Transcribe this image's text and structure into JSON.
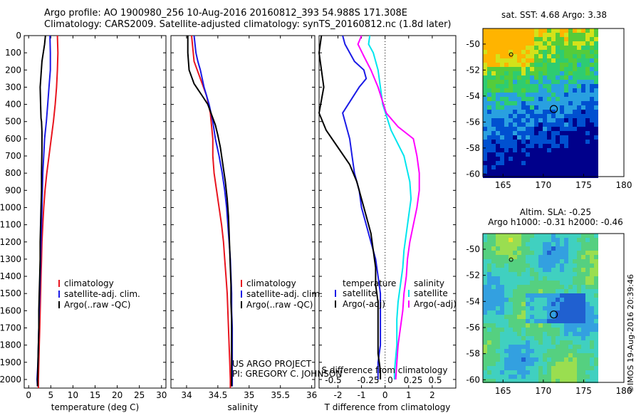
{
  "header": {
    "line1": "Argo profile: AO 1900980_256 10-Aug-2016 20160812_393 54.988S 171.308E",
    "line2": "Climatology: CARS2009. Satellite-adjusted climatology: synTS_20160812.nc (1.8d later)"
  },
  "stamp": "©IMOS 19-Aug-2016 20:39:46",
  "project": {
    "line1": "US ARGO PROJECT",
    "line2": "PI: GREGORY C. JOHNSON"
  },
  "colors": {
    "clim": "#e8141e",
    "sat": "#1a1ae6",
    "argo": "#000000",
    "sal_clim": "#ff00ff",
    "sal_sat": "#00e5ee"
  },
  "chart_data": [
    {
      "type": "line",
      "id": "temperature",
      "xlabel": "temperature (deg C)",
      "xlim": [
        -1,
        31
      ],
      "ylim": [
        2050,
        0
      ],
      "xticks": [
        0,
        5,
        10,
        15,
        20,
        25,
        30
      ],
      "yticks": [
        0,
        100,
        200,
        300,
        400,
        500,
        600,
        700,
        800,
        900,
        1000,
        1100,
        1200,
        1300,
        1400,
        1500,
        1600,
        1700,
        1800,
        1900,
        2000
      ],
      "legend": [
        "climatology",
        "satellite-adj. clim.",
        "Argo(..raw -QC)"
      ],
      "series": [
        {
          "name": "climatology",
          "color": "#e8141e",
          "points": [
            [
              6.5,
              0
            ],
            [
              6.6,
              100
            ],
            [
              6.5,
              200
            ],
            [
              6.3,
              300
            ],
            [
              6.0,
              400
            ],
            [
              5.6,
              500
            ],
            [
              5.1,
              600
            ],
            [
              4.6,
              700
            ],
            [
              4.1,
              800
            ],
            [
              3.7,
              900
            ],
            [
              3.4,
              1000
            ],
            [
              3.2,
              1100
            ],
            [
              3.0,
              1200
            ],
            [
              2.9,
              1300
            ],
            [
              2.8,
              1400
            ],
            [
              2.7,
              1500
            ],
            [
              2.6,
              1600
            ],
            [
              2.5,
              1700
            ],
            [
              2.4,
              1800
            ],
            [
              2.3,
              1900
            ],
            [
              2.2,
              2000
            ],
            [
              2.2,
              2050
            ]
          ]
        },
        {
          "name": "satellite-adj. clim.",
          "color": "#1a1ae6",
          "points": [
            [
              4.8,
              0
            ],
            [
              4.9,
              100
            ],
            [
              4.9,
              200
            ],
            [
              4.6,
              300
            ],
            [
              4.3,
              400
            ],
            [
              4.0,
              500
            ],
            [
              3.6,
              600
            ],
            [
              3.4,
              700
            ],
            [
              3.2,
              800
            ],
            [
              3.1,
              900
            ],
            [
              3.0,
              1000
            ],
            [
              2.9,
              1100
            ],
            [
              2.8,
              1200
            ],
            [
              2.7,
              1300
            ],
            [
              2.6,
              1400
            ],
            [
              2.5,
              1500
            ],
            [
              2.4,
              1600
            ],
            [
              2.3,
              1700
            ],
            [
              2.2,
              1800
            ],
            [
              2.1,
              1900
            ],
            [
              1.9,
              2000
            ],
            [
              2.0,
              2040
            ]
          ]
        },
        {
          "name": "Argo(..raw -QC)",
          "color": "#000000",
          "points": [
            [
              3.8,
              0
            ],
            [
              3.6,
              50
            ],
            [
              3.0,
              150
            ],
            [
              2.6,
              300
            ],
            [
              2.7,
              400
            ],
            [
              2.8,
              480
            ],
            [
              2.9,
              500
            ],
            [
              3.0,
              560
            ],
            [
              3.0,
              650
            ],
            [
              2.9,
              800
            ],
            [
              2.9,
              900
            ],
            [
              2.8,
              1000
            ],
            [
              2.7,
              1100
            ],
            [
              2.6,
              1200
            ],
            [
              2.6,
              1300
            ],
            [
              2.5,
              1400
            ],
            [
              2.4,
              1500
            ],
            [
              2.3,
              1600
            ],
            [
              2.3,
              1700
            ],
            [
              2.2,
              1800
            ],
            [
              2.1,
              1900
            ],
            [
              2.0,
              2000
            ],
            [
              2.0,
              2040
            ]
          ]
        }
      ]
    },
    {
      "type": "line",
      "id": "salinity",
      "xlabel": "salinity",
      "xlim": [
        33.75,
        36.05
      ],
      "ylim": [
        2050,
        0
      ],
      "xticks": [
        34,
        34.5,
        35,
        35.5,
        36
      ],
      "xticklabels": [
        "34",
        "34.5",
        "35",
        "35.5",
        "36"
      ],
      "legend": [
        "climatology",
        "satellite-adj. clim.",
        "Argo(..raw -QC)"
      ],
      "series": [
        {
          "name": "climatology",
          "color": "#e8141e",
          "points": [
            [
              34.08,
              0
            ],
            [
              34.12,
              150
            ],
            [
              34.22,
              250
            ],
            [
              34.32,
              350
            ],
            [
              34.38,
              450
            ],
            [
              34.42,
              600
            ],
            [
              34.42,
              700
            ],
            [
              34.44,
              800
            ],
            [
              34.48,
              900
            ],
            [
              34.52,
              1000
            ],
            [
              34.56,
              1100
            ],
            [
              34.59,
              1200
            ],
            [
              34.61,
              1300
            ],
            [
              34.63,
              1400
            ],
            [
              34.65,
              1500
            ],
            [
              34.66,
              1600
            ],
            [
              34.67,
              1700
            ],
            [
              34.68,
              1800
            ],
            [
              34.69,
              1900
            ],
            [
              34.7,
              2000
            ],
            [
              34.7,
              2050
            ]
          ]
        },
        {
          "name": "satellite-adj. clim.",
          "color": "#1a1ae6",
          "points": [
            [
              34.12,
              0
            ],
            [
              34.15,
              100
            ],
            [
              34.18,
              150
            ],
            [
              34.22,
              200
            ],
            [
              34.28,
              300
            ],
            [
              34.36,
              400
            ],
            [
              34.42,
              500
            ],
            [
              34.46,
              600
            ],
            [
              34.52,
              700
            ],
            [
              34.57,
              800
            ],
            [
              34.61,
              900
            ],
            [
              34.64,
              1000
            ],
            [
              34.66,
              1100
            ],
            [
              34.68,
              1200
            ],
            [
              34.7,
              1300
            ],
            [
              34.71,
              1400
            ],
            [
              34.72,
              1500
            ],
            [
              34.72,
              1600
            ],
            [
              34.73,
              1700
            ],
            [
              34.73,
              1800
            ],
            [
              34.73,
              1900
            ],
            [
              34.73,
              2000
            ],
            [
              34.73,
              2040
            ]
          ]
        },
        {
          "name": "Argo(..raw -QC)",
          "color": "#000000",
          "points": [
            [
              34.02,
              0
            ],
            [
              34.02,
              100
            ],
            [
              34.04,
              200
            ],
            [
              34.12,
              280
            ],
            [
              34.25,
              350
            ],
            [
              34.34,
              400
            ],
            [
              34.4,
              460
            ],
            [
              34.46,
              520
            ],
            [
              34.5,
              580
            ],
            [
              34.54,
              650
            ],
            [
              34.58,
              750
            ],
            [
              34.62,
              850
            ],
            [
              34.65,
              950
            ],
            [
              34.67,
              1050
            ],
            [
              34.68,
              1150
            ],
            [
              34.69,
              1250
            ],
            [
              34.7,
              1350
            ],
            [
              34.71,
              1450
            ],
            [
              34.71,
              1550
            ],
            [
              34.72,
              1650
            ],
            [
              34.72,
              1750
            ],
            [
              34.72,
              1850
            ],
            [
              34.72,
              1950
            ],
            [
              34.72,
              2040
            ]
          ]
        }
      ]
    },
    {
      "type": "line",
      "id": "difference",
      "xlabel": "T difference from climatology",
      "xlabel_top": "S difference from climatology",
      "xlim": [
        -2.8,
        3.0
      ],
      "ylim": [
        2050,
        0
      ],
      "xticks": [
        -2,
        -1,
        0,
        1,
        2
      ],
      "top_axis_ticks": [
        "-0.5",
        "-0.25",
        "0",
        "0.25",
        "0.5"
      ],
      "legend_temperature": [
        "temperature",
        "satellite",
        "Argo(-adj)"
      ],
      "legend_salinity": [
        "salinity",
        "satellite",
        "Argo(-adj)"
      ],
      "series": [
        {
          "name": "satellite",
          "group": "temperature",
          "color": "#1a1ae6",
          "points": [
            [
              -1.8,
              0
            ],
            [
              -1.7,
              50
            ],
            [
              -1.3,
              150
            ],
            [
              -0.9,
              200
            ],
            [
              -0.8,
              250
            ],
            [
              -1.1,
              300
            ],
            [
              -1.8,
              450
            ],
            [
              -1.5,
              600
            ],
            [
              -1.4,
              700
            ],
            [
              -1.3,
              800
            ],
            [
              -1.1,
              900
            ],
            [
              -1.0,
              1000
            ],
            [
              -0.8,
              1100
            ],
            [
              -0.6,
              1200
            ],
            [
              -0.4,
              1300
            ],
            [
              -0.3,
              1400
            ],
            [
              -0.2,
              1500
            ],
            [
              -0.2,
              1600
            ],
            [
              -0.2,
              1700
            ],
            [
              -0.2,
              1800
            ],
            [
              -0.3,
              1900
            ],
            [
              -0.3,
              2000
            ]
          ]
        },
        {
          "name": "Argo(-adj)",
          "group": "temperature",
          "color": "#000000",
          "points": [
            [
              -2.7,
              0
            ],
            [
              -2.8,
              100
            ],
            [
              -2.6,
              300
            ],
            [
              -2.8,
              450
            ],
            [
              -2.5,
              550
            ],
            [
              -2.0,
              650
            ],
            [
              -1.5,
              750
            ],
            [
              -1.2,
              850
            ],
            [
              -1.0,
              950
            ],
            [
              -0.8,
              1050
            ],
            [
              -0.6,
              1150
            ],
            [
              -0.5,
              1250
            ],
            [
              -0.4,
              1350
            ],
            [
              -0.4,
              1450
            ],
            [
              -0.3,
              1550
            ],
            [
              -0.3,
              1650
            ],
            [
              -0.3,
              1750
            ],
            [
              -0.3,
              1850
            ],
            [
              -0.2,
              1950
            ],
            [
              -0.2,
              2000
            ]
          ]
        },
        {
          "name": "satellite",
          "group": "salinity",
          "color": "#00e5ee",
          "points": [
            [
              -0.65,
              0
            ],
            [
              -0.7,
              50
            ],
            [
              -0.5,
              100
            ],
            [
              -0.3,
              200
            ],
            [
              -0.1,
              400
            ],
            [
              0.25,
              550
            ],
            [
              0.8,
              700
            ],
            [
              1.05,
              850
            ],
            [
              1.1,
              950
            ],
            [
              1.0,
              1050
            ],
            [
              0.9,
              1150
            ],
            [
              0.8,
              1250
            ],
            [
              0.75,
              1350
            ],
            [
              0.65,
              1450
            ],
            [
              0.55,
              1550
            ],
            [
              0.5,
              1650
            ],
            [
              0.5,
              1800
            ],
            [
              0.4,
              1950
            ],
            [
              0.4,
              2000
            ]
          ]
        },
        {
          "name": "Argo(-adj)",
          "group": "salinity",
          "color": "#ff00ff",
          "points": [
            [
              -1.0,
              0
            ],
            [
              -1.15,
              50
            ],
            [
              -0.9,
              120
            ],
            [
              -0.6,
              200
            ],
            [
              -0.3,
              300
            ],
            [
              0.05,
              450
            ],
            [
              0.55,
              530
            ],
            [
              1.2,
              600
            ],
            [
              1.35,
              700
            ],
            [
              1.45,
              800
            ],
            [
              1.45,
              900
            ],
            [
              1.35,
              1000
            ],
            [
              1.2,
              1100
            ],
            [
              1.05,
              1200
            ],
            [
              0.95,
              1300
            ],
            [
              0.9,
              1400
            ],
            [
              0.8,
              1500
            ],
            [
              0.75,
              1600
            ],
            [
              0.65,
              1700
            ],
            [
              0.55,
              1800
            ],
            [
              0.5,
              1900
            ],
            [
              0.45,
              2000
            ]
          ]
        }
      ]
    },
    {
      "type": "heatmap",
      "id": "sst_map",
      "title": "sat. SST: 4.68 Argo: 3.38",
      "xlim": [
        162.5,
        180
      ],
      "ylim": [
        -60.2,
        -48.8
      ],
      "xticks": [
        165,
        170,
        175,
        180
      ],
      "yticks": [
        -50,
        -52,
        -54,
        -56,
        -58,
        -60
      ],
      "float_position": [
        171.3,
        -55.0
      ]
    },
    {
      "type": "heatmap",
      "id": "sla_map",
      "title": "Altim. SLA: -0.25",
      "subtitle": "Argo h1000: -0.31 h2000: -0.46",
      "xlim": [
        162.5,
        180
      ],
      "ylim": [
        -60.2,
        -48.8
      ],
      "xticks": [
        165,
        170,
        175,
        180
      ],
      "yticks": [
        -50,
        -52,
        -54,
        -56,
        -58,
        -60
      ],
      "float_position": [
        171.3,
        -55.0
      ]
    }
  ]
}
